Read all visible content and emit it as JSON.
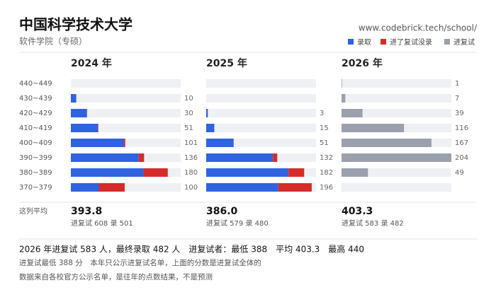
{
  "header": {
    "title": "中国科学技术大学",
    "subtitle": "软件学院（专硕）",
    "url": "www.codebrick.tech/school/"
  },
  "row_labels": [
    "440~449",
    "430~439",
    "420~429",
    "410~419",
    "400~409",
    "390~399",
    "380~389",
    "370~379"
  ],
  "summary_label": "这列平均",
  "chart_data": [
    {
      "type": "bar",
      "title": "2024 年",
      "orientation": "horizontal",
      "stacked": true,
      "xlim": [
        0,
        204
      ],
      "series": [
        {
          "name": "录取",
          "color": "#2f63e0",
          "values": [
            null,
            10,
            30,
            50,
            98,
            126,
            135,
            52
          ]
        },
        {
          "name": "进了复试没录",
          "color": "#d62b2b",
          "values": [
            null,
            0,
            0,
            1,
            3,
            10,
            45,
            48
          ]
        }
      ],
      "totals": [
        null,
        10,
        30,
        51,
        101,
        136,
        180,
        100
      ],
      "average": "393.8",
      "note": "进复试 608 录 501"
    },
    {
      "type": "bar",
      "title": "2025 年",
      "orientation": "horizontal",
      "stacked": true,
      "xlim": [
        0,
        204
      ],
      "series": [
        {
          "color": "#2f63e0",
          "values": [
            null,
            null,
            3,
            15,
            51,
            124,
            153,
            134
          ]
        },
        {
          "color": "#d62b2b",
          "values": [
            null,
            null,
            0,
            0,
            0,
            8,
            29,
            62
          ]
        }
      ],
      "totals": [
        null,
        null,
        3,
        15,
        51,
        132,
        182,
        196
      ],
      "average": "386.0",
      "note": "进复试 579 录 480"
    },
    {
      "type": "bar",
      "title": "2026 年",
      "orientation": "horizontal",
      "stacked": true,
      "xlim": [
        0,
        204
      ],
      "series": [
        {
          "name": "进复试",
          "color": "#9aa1ad",
          "values": [
            1,
            7,
            39,
            116,
            167,
            204,
            49,
            null
          ]
        }
      ],
      "average": "403.3",
      "note": "进复试 583 录 482"
    }
  ],
  "footer": [
    "2026 年进复试 583 人，最终录取 482 人　进复试者：最低 388　平均 403.3　最高 440",
    "进复试最低 388 分　本年只公示进复试名单，上面的分数是进复试全体的",
    "数据来自各校官方公示名单，是往年的点数结果，不是预测"
  ]
}
